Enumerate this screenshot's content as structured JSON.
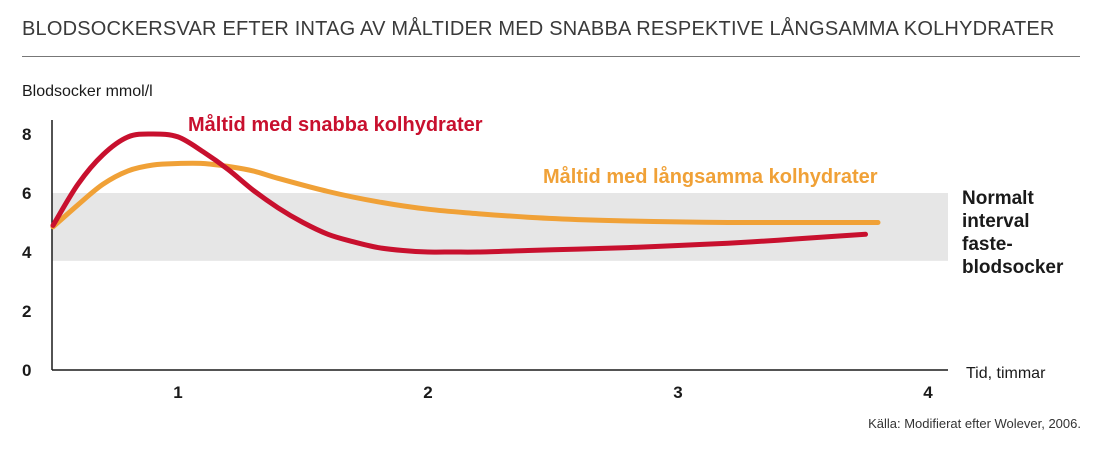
{
  "chart_data": {
    "type": "line",
    "title": "BLODSOCKERSVAR EFTER INTAG AV MÅLTIDER MED SNABBA RESPEKTIVE LÅNGSAMMA KOLHYDRATER",
    "ylabel": "Blodsocker mmol/l",
    "xlabel": "Tid, timmar",
    "ylim": [
      0,
      8
    ],
    "xlim": [
      0.5,
      4
    ],
    "yticks": [
      "0",
      "2",
      "4",
      "6",
      "8"
    ],
    "xticks": [
      "1",
      "2",
      "3",
      "4"
    ],
    "band": {
      "range": [
        3.7,
        6.0
      ],
      "label_lines": [
        "Normalt",
        "interval",
        "faste-",
        "blodsocker"
      ]
    },
    "series": [
      {
        "name": "Måltid med snabba kolhydrater",
        "color": "#c8102e",
        "x": [
          0.5,
          0.6,
          0.7,
          0.8,
          0.9,
          1.0,
          1.1,
          1.2,
          1.3,
          1.4,
          1.5,
          1.6,
          1.7,
          1.8,
          1.9,
          2.0,
          2.1,
          2.2,
          2.4,
          2.6,
          2.8,
          3.0,
          3.2,
          3.4,
          3.6,
          3.75
        ],
        "values": [
          4.9,
          6.3,
          7.3,
          7.9,
          8.0,
          7.9,
          7.4,
          6.8,
          6.1,
          5.5,
          5.0,
          4.6,
          4.35,
          4.15,
          4.05,
          4.0,
          4.0,
          4.0,
          4.05,
          4.1,
          4.15,
          4.22,
          4.3,
          4.4,
          4.52,
          4.6
        ]
      },
      {
        "name": "Måltid med långsamma kolhydrater",
        "color": "#f0a137",
        "x": [
          0.5,
          0.6,
          0.7,
          0.8,
          0.9,
          1.0,
          1.1,
          1.2,
          1.3,
          1.4,
          1.6,
          1.8,
          2.0,
          2.2,
          2.4,
          2.6,
          2.8,
          3.0,
          3.2,
          3.4,
          3.6,
          3.8
        ],
        "values": [
          4.85,
          5.6,
          6.3,
          6.75,
          6.95,
          7.0,
          7.0,
          6.9,
          6.75,
          6.5,
          6.05,
          5.7,
          5.45,
          5.3,
          5.18,
          5.1,
          5.05,
          5.02,
          5.0,
          5.0,
          5.0,
          5.0
        ]
      }
    ]
  },
  "source": "Källa: Modifierat efter Wolever, 2006."
}
